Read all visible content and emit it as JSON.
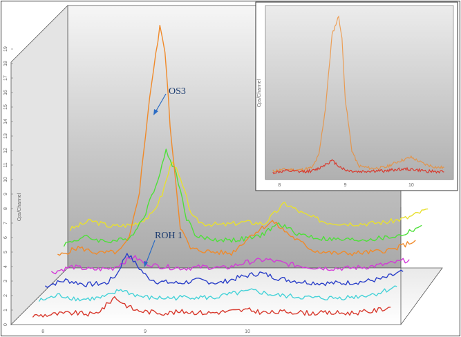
{
  "chart_data": [
    {
      "type": "line",
      "view": "3d-stacked-spectra",
      "ylabel": "Cps/Channel",
      "xlabel": "",
      "yticks": [
        "0",
        "1",
        "2",
        "3",
        "4",
        "5",
        "6",
        "7",
        "8",
        "9",
        "10",
        "11",
        "12",
        "13",
        "14",
        "15",
        "16",
        "17",
        "18",
        "19"
      ],
      "xticks": [
        "8",
        "9",
        "10"
      ],
      "xlim": [
        7.85,
        11.5
      ],
      "ylim": [
        0,
        19.5
      ],
      "grid": false,
      "annotations": [
        {
          "text": "OS3",
          "x": 8.86,
          "y": 15.3
        },
        {
          "text": "ROH 1",
          "x": 8.73,
          "y": 4.7
        }
      ],
      "series": [
        {
          "color": "#d83a2e",
          "depth": 0,
          "x": [
            7.9,
            8.1,
            8.3,
            8.5,
            8.6,
            8.7,
            8.8,
            8.9,
            9.0,
            9.2,
            9.4,
            9.6,
            9.8,
            10.0,
            10.2,
            10.4,
            10.6,
            10.8,
            11.0,
            11.2,
            11.4
          ],
          "y": [
            0.6,
            0.7,
            0.8,
            0.7,
            1.2,
            1.9,
            1.4,
            1.0,
            0.9,
            0.8,
            0.9,
            0.8,
            0.9,
            1.0,
            0.8,
            0.9,
            0.8,
            0.8,
            0.8,
            0.9,
            1.2
          ]
        },
        {
          "color": "#45d2d8",
          "depth": 1,
          "x": [
            7.9,
            8.1,
            8.3,
            8.5,
            8.6,
            8.7,
            8.8,
            8.9,
            9.0,
            9.2,
            9.4,
            9.6,
            9.8,
            10.0,
            10.2,
            10.4,
            10.6,
            10.8,
            11.0,
            11.2,
            11.4
          ],
          "y": [
            1.2,
            1.6,
            1.3,
            1.4,
            1.6,
            2.0,
            1.7,
            1.5,
            1.4,
            1.4,
            1.5,
            1.4,
            1.7,
            1.9,
            1.6,
            1.5,
            1.4,
            1.4,
            1.5,
            1.7,
            2.2
          ]
        },
        {
          "color": "#2a3fc8",
          "depth": 2,
          "x": [
            7.9,
            8.1,
            8.3,
            8.5,
            8.6,
            8.7,
            8.8,
            8.9,
            9.0,
            9.2,
            9.4,
            9.6,
            9.8,
            10.0,
            10.2,
            10.4,
            10.6,
            10.8,
            11.0,
            11.2,
            11.4
          ],
          "y": [
            1.8,
            2.2,
            1.9,
            2.0,
            2.6,
            4.1,
            3.2,
            2.4,
            2.1,
            2.0,
            2.2,
            2.0,
            2.4,
            2.7,
            2.3,
            2.1,
            2.0,
            2.0,
            2.1,
            2.3,
            2.8
          ]
        },
        {
          "color": "#d33ad8",
          "depth": 3,
          "x": [
            7.9,
            8.1,
            8.3,
            8.5,
            8.6,
            8.7,
            8.8,
            8.9,
            9.0,
            9.2,
            9.4,
            9.6,
            9.8,
            10.0,
            10.2,
            10.4,
            10.6,
            10.8,
            11.0,
            11.2,
            11.4
          ],
          "y": [
            2.3,
            2.7,
            2.5,
            2.6,
            3.0,
            3.4,
            3.0,
            2.8,
            2.7,
            2.6,
            2.7,
            2.6,
            3.0,
            3.2,
            2.9,
            2.7,
            2.6,
            2.6,
            2.7,
            2.9,
            3.2
          ]
        },
        {
          "color": "#f08a2a",
          "depth": 4,
          "x": [
            7.9,
            8.1,
            8.3,
            8.5,
            8.6,
            8.7,
            8.8,
            8.9,
            8.95,
            9.0,
            9.1,
            9.2,
            9.4,
            9.6,
            9.8,
            10.0,
            10.2,
            10.4,
            10.6,
            10.8,
            11.0,
            11.2,
            11.4
          ],
          "y": [
            3.0,
            3.6,
            3.2,
            3.3,
            4.2,
            7.5,
            14.0,
            18.8,
            17.2,
            12.0,
            5.0,
            3.5,
            3.3,
            3.2,
            4.5,
            5.4,
            4.3,
            3.4,
            3.2,
            3.2,
            3.3,
            3.5,
            4.1
          ]
        },
        {
          "color": "#4ee03a",
          "depth": 5,
          "x": [
            7.9,
            8.1,
            8.3,
            8.5,
            8.6,
            8.7,
            8.8,
            8.9,
            9.0,
            9.1,
            9.2,
            9.4,
            9.6,
            9.8,
            10.0,
            10.2,
            10.4,
            10.6,
            10.8,
            11.0,
            11.2,
            11.4
          ],
          "y": [
            3.4,
            3.9,
            3.6,
            3.7,
            4.3,
            5.6,
            7.5,
            9.8,
            8.3,
            5.2,
            3.9,
            3.7,
            3.7,
            3.9,
            4.8,
            4.1,
            3.8,
            3.7,
            3.7,
            3.8,
            4.0,
            4.7
          ]
        },
        {
          "color": "#e8e030",
          "depth": 6,
          "x": [
            7.9,
            8.1,
            8.3,
            8.5,
            8.6,
            8.7,
            8.8,
            8.9,
            9.0,
            9.1,
            9.2,
            9.4,
            9.6,
            9.8,
            10.0,
            10.2,
            10.4,
            10.6,
            10.8,
            11.0,
            11.2,
            11.4
          ],
          "y": [
            4.0,
            4.6,
            4.2,
            4.3,
            4.6,
            5.0,
            6.4,
            8.8,
            7.0,
            4.8,
            4.4,
            4.3,
            4.5,
            4.4,
            5.8,
            5.0,
            4.5,
            4.4,
            4.4,
            4.5,
            4.8,
            5.4
          ]
        }
      ]
    },
    {
      "type": "line",
      "view": "inset",
      "ylabel": "Cps/Channel",
      "xlabel": "",
      "xticks": [
        "8",
        "9",
        "10"
      ],
      "xlim": [
        7.85,
        10.6
      ],
      "ylim": [
        0,
        19.5
      ],
      "grid": false,
      "series": [
        {
          "color": "#f08a2a",
          "x": [
            7.9,
            8.1,
            8.3,
            8.5,
            8.6,
            8.7,
            8.8,
            8.9,
            8.95,
            9.0,
            9.1,
            9.2,
            9.4,
            9.6,
            9.8,
            10.0,
            10.2,
            10.4,
            10.5
          ],
          "y": [
            0.6,
            0.8,
            0.7,
            1.0,
            2.5,
            8.0,
            16.5,
            18.7,
            16.0,
            9.0,
            3.0,
            1.2,
            0.9,
            1.0,
            1.7,
            2.2,
            1.4,
            1.0,
            1.0
          ]
        },
        {
          "color": "#d83a2e",
          "x": [
            7.9,
            8.1,
            8.3,
            8.5,
            8.6,
            8.7,
            8.8,
            8.9,
            9.0,
            9.2,
            9.4,
            9.6,
            9.8,
            10.0,
            10.2,
            10.4,
            10.5
          ],
          "y": [
            0.4,
            0.6,
            0.5,
            0.6,
            0.9,
            1.4,
            1.8,
            1.2,
            0.7,
            0.5,
            0.6,
            0.6,
            0.8,
            0.8,
            0.6,
            0.5,
            0.5
          ]
        }
      ]
    }
  ]
}
